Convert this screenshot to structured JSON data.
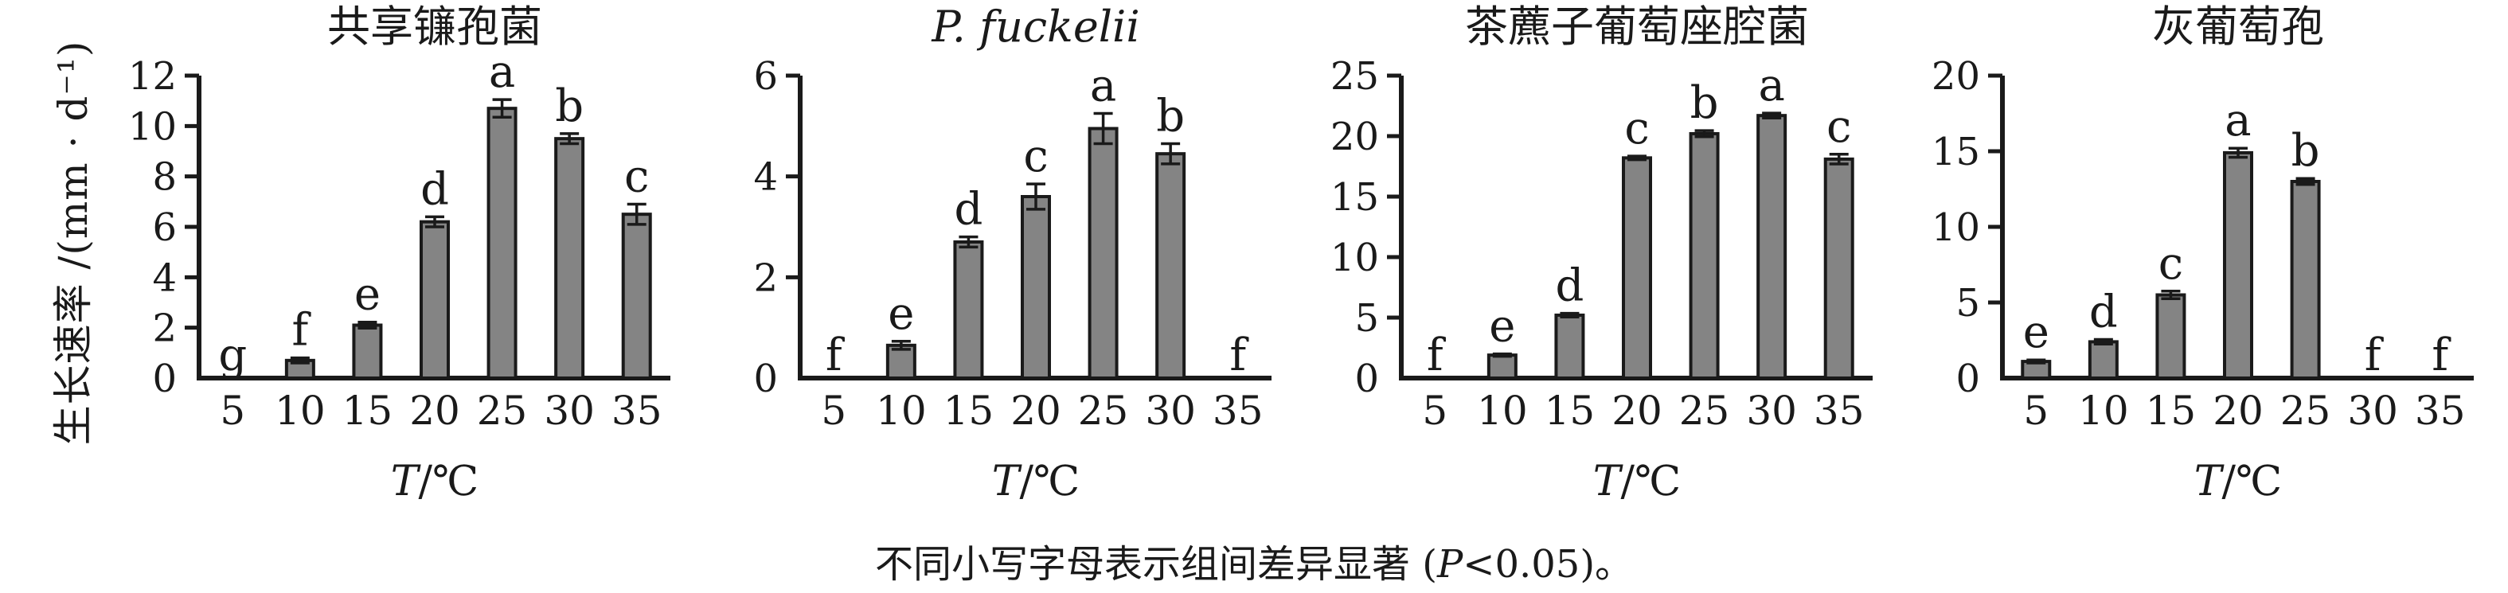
{
  "figure": {
    "ylabel": "生长速率 /(mm · d⁻¹)",
    "xlabel": {
      "italic": "T",
      "rest": "/℃"
    },
    "caption": {
      "pre": "不同小写字母表示组间差异显著 (",
      "italic": "P",
      "post": "<0.05)。"
    },
    "colors": {
      "bar_fill": "#848484",
      "bar_stroke": "#1a1a1a",
      "axis": "#1a1a1a",
      "text": "#1a1a1a"
    }
  },
  "chart_data": [
    {
      "type": "bar",
      "title": "共享镰孢菌",
      "title_italic": false,
      "categories": [
        5,
        10,
        15,
        20,
        25,
        30,
        35
      ],
      "values": [
        0,
        0.7,
        2.1,
        6.2,
        10.7,
        9.5,
        6.5
      ],
      "errors": [
        0,
        0.1,
        0.12,
        0.2,
        0.35,
        0.2,
        0.4
      ],
      "sig_letters": [
        "g",
        "f",
        "e",
        "d",
        "a",
        "b",
        "c"
      ],
      "xlabel": "T/℃",
      "ylabel": "生长速率 /(mm · d⁻¹)",
      "ylim": [
        0,
        12
      ],
      "yticks": [
        0,
        2,
        4,
        6,
        8,
        10,
        12
      ],
      "grid": false,
      "legend": "none"
    },
    {
      "type": "bar",
      "title": "P. fuckelii",
      "title_italic": true,
      "categories": [
        5,
        10,
        15,
        20,
        25,
        30,
        35
      ],
      "values": [
        0,
        0.65,
        2.7,
        3.6,
        4.95,
        4.45,
        0
      ],
      "errors": [
        0,
        0.08,
        0.1,
        0.25,
        0.3,
        0.2,
        0
      ],
      "sig_letters": [
        "f",
        "e",
        "d",
        "c",
        "a",
        "b",
        "f"
      ],
      "xlabel": "T/℃",
      "ylabel": "",
      "ylim": [
        0,
        6
      ],
      "yticks": [
        0,
        2,
        4,
        6
      ],
      "grid": false,
      "legend": "none"
    },
    {
      "type": "bar",
      "title": "茶藨子葡萄座腔菌",
      "title_italic": false,
      "categories": [
        5,
        10,
        15,
        20,
        25,
        30,
        35
      ],
      "values": [
        0,
        1.9,
        5.2,
        18.2,
        20.2,
        21.7,
        18.1
      ],
      "errors": [
        0,
        0.1,
        0.15,
        0.15,
        0.25,
        0.2,
        0.4
      ],
      "sig_letters": [
        "f",
        "e",
        "d",
        "c",
        "b",
        "a",
        "c"
      ],
      "xlabel": "T/℃",
      "ylabel": "",
      "ylim": [
        0,
        25
      ],
      "yticks": [
        0,
        5,
        10,
        15,
        20,
        25
      ],
      "grid": false,
      "legend": "none"
    },
    {
      "type": "bar",
      "title": "灰葡萄孢",
      "title_italic": false,
      "categories": [
        5,
        10,
        15,
        20,
        25,
        30,
        35
      ],
      "values": [
        1.1,
        2.4,
        5.5,
        14.9,
        13.0,
        0,
        0
      ],
      "errors": [
        0.1,
        0.15,
        0.25,
        0.3,
        0.2,
        0,
        0
      ],
      "sig_letters": [
        "e",
        "d",
        "c",
        "a",
        "b",
        "f",
        "f"
      ],
      "xlabel": "T/℃",
      "ylabel": "",
      "ylim": [
        0,
        20
      ],
      "yticks": [
        0,
        5,
        10,
        15,
        20
      ],
      "grid": false,
      "legend": "none"
    }
  ]
}
